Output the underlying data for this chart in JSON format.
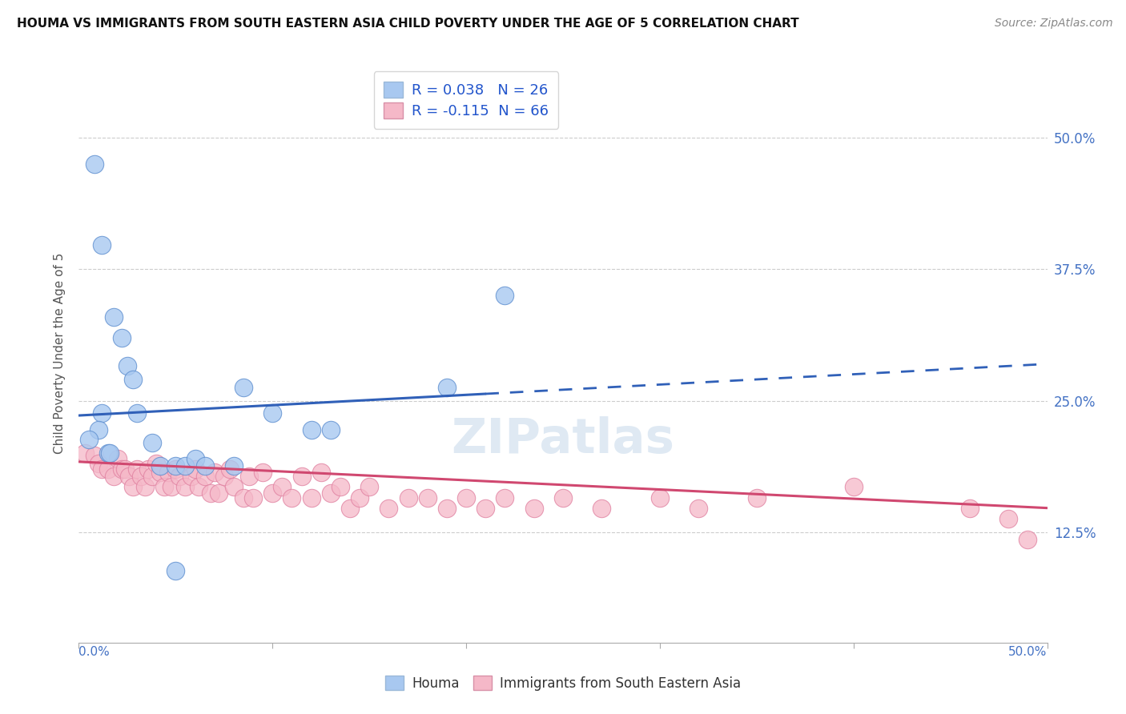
{
  "title": "HOUMA VS IMMIGRANTS FROM SOUTH EASTERN ASIA CHILD POVERTY UNDER THE AGE OF 5 CORRELATION CHART",
  "source": "Source: ZipAtlas.com",
  "ylabel": "Child Poverty Under the Age of 5",
  "ytick_labels": [
    "12.5%",
    "25.0%",
    "37.5%",
    "50.0%"
  ],
  "ytick_values": [
    0.125,
    0.25,
    0.375,
    0.5
  ],
  "xlim": [
    0.0,
    0.5
  ],
  "ylim": [
    0.02,
    0.57
  ],
  "r_blue": 0.038,
  "n_blue": 26,
  "r_pink": -0.115,
  "n_pink": 66,
  "blue_color": "#a8c8f0",
  "blue_edge_color": "#6090d0",
  "pink_color": "#f5b8c8",
  "pink_edge_color": "#e080a0",
  "blue_line_color": "#3060b8",
  "pink_line_color": "#d04870",
  "blue_scatter_x": [
    0.008,
    0.012,
    0.018,
    0.022,
    0.025,
    0.028,
    0.03,
    0.012,
    0.01,
    0.005,
    0.015,
    0.016,
    0.038,
    0.042,
    0.05,
    0.055,
    0.06,
    0.065,
    0.08,
    0.12,
    0.13,
    0.085,
    0.1,
    0.19,
    0.22,
    0.05
  ],
  "blue_scatter_y": [
    0.475,
    0.398,
    0.33,
    0.31,
    0.283,
    0.27,
    0.238,
    0.238,
    0.222,
    0.213,
    0.2,
    0.2,
    0.21,
    0.188,
    0.188,
    0.188,
    0.195,
    0.188,
    0.188,
    0.222,
    0.222,
    0.263,
    0.238,
    0.263,
    0.35,
    0.088
  ],
  "pink_scatter_x": [
    0.003,
    0.008,
    0.01,
    0.012,
    0.015,
    0.018,
    0.02,
    0.022,
    0.024,
    0.026,
    0.028,
    0.03,
    0.032,
    0.034,
    0.036,
    0.038,
    0.04,
    0.042,
    0.044,
    0.046,
    0.048,
    0.05,
    0.052,
    0.055,
    0.058,
    0.06,
    0.062,
    0.065,
    0.068,
    0.07,
    0.072,
    0.075,
    0.078,
    0.08,
    0.085,
    0.088,
    0.09,
    0.095,
    0.1,
    0.105,
    0.11,
    0.115,
    0.12,
    0.125,
    0.13,
    0.135,
    0.14,
    0.145,
    0.15,
    0.16,
    0.17,
    0.18,
    0.19,
    0.2,
    0.21,
    0.22,
    0.235,
    0.25,
    0.27,
    0.3,
    0.32,
    0.35,
    0.4,
    0.46,
    0.48,
    0.49
  ],
  "pink_scatter_y": [
    0.2,
    0.198,
    0.19,
    0.185,
    0.185,
    0.178,
    0.195,
    0.185,
    0.185,
    0.178,
    0.168,
    0.185,
    0.178,
    0.168,
    0.185,
    0.178,
    0.19,
    0.182,
    0.168,
    0.182,
    0.168,
    0.185,
    0.178,
    0.168,
    0.178,
    0.185,
    0.168,
    0.178,
    0.162,
    0.182,
    0.162,
    0.178,
    0.185,
    0.168,
    0.158,
    0.178,
    0.158,
    0.182,
    0.162,
    0.168,
    0.158,
    0.178,
    0.158,
    0.182,
    0.162,
    0.168,
    0.148,
    0.158,
    0.168,
    0.148,
    0.158,
    0.158,
    0.148,
    0.158,
    0.148,
    0.158,
    0.148,
    0.158,
    0.148,
    0.158,
    0.148,
    0.158,
    0.168,
    0.148,
    0.138,
    0.118
  ],
  "blue_line_x0": 0.0,
  "blue_line_y0": 0.236,
  "blue_line_x_split": 0.21,
  "blue_line_x1": 0.5,
  "blue_line_y1": 0.285,
  "pink_line_y0": 0.192,
  "pink_line_y1": 0.148,
  "grid_color": "#cccccc",
  "watermark_color": "#c5d8ea",
  "watermark_alpha": 0.55,
  "bottom_legend_labels": [
    "Houma",
    "Immigrants from South Eastern Asia"
  ]
}
